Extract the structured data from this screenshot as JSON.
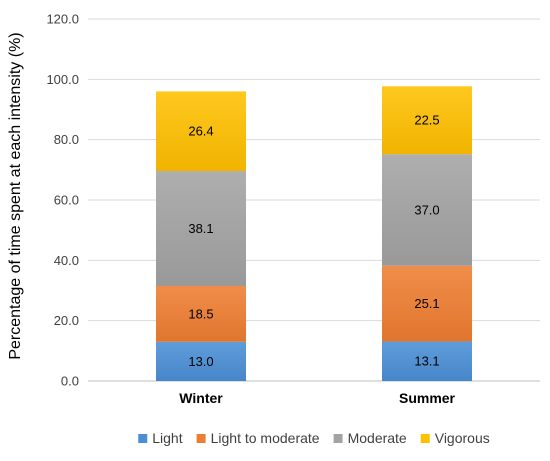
{
  "chart_data": {
    "type": "bar",
    "stacked": true,
    "title": "",
    "xlabel": "",
    "ylabel": "Percentage of time spent at each intensity (%)",
    "ylim": [
      0,
      120
    ],
    "yticks": [
      "0.0",
      "20.0",
      "40.0",
      "60.0",
      "80.0",
      "100.0",
      "120.0"
    ],
    "grid": true,
    "legend_position": "bottom",
    "categories": [
      "Winter",
      "Summer"
    ],
    "series": [
      {
        "name": "Light",
        "values": [
          13.0,
          13.1
        ],
        "labels": [
          "13.0",
          "13.1"
        ],
        "color": "#4a8fd6"
      },
      {
        "name": "Light to moderate",
        "values": [
          18.5,
          25.1
        ],
        "labels": [
          "18.5",
          "25.1"
        ],
        "color": "#ee7d31"
      },
      {
        "name": "Moderate",
        "values": [
          38.1,
          37.0
        ],
        "labels": [
          "38.1",
          "37.0"
        ],
        "color": "#a3a3a3"
      },
      {
        "name": "Vigorous",
        "values": [
          26.4,
          22.5
        ],
        "labels": [
          "26.4",
          "22.5"
        ],
        "color": "#ffc000"
      }
    ]
  }
}
